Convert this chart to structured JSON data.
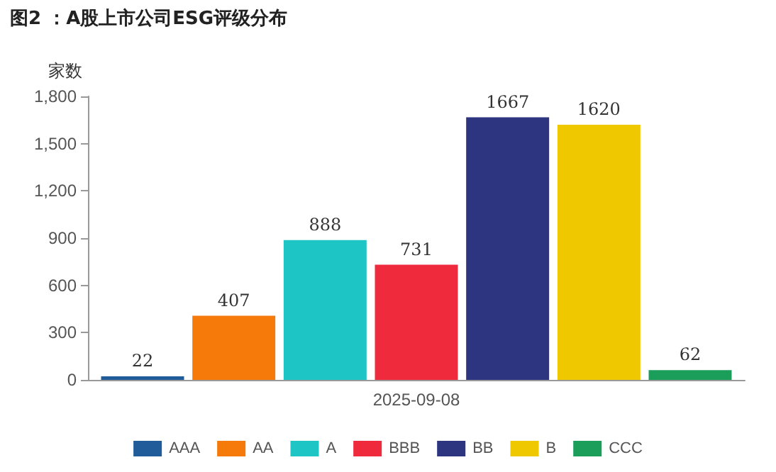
{
  "chart_data": {
    "type": "bar",
    "title": "图2 ：A股上市公司ESG评级分布",
    "ylabel": "家数",
    "categories": [
      "2025-09-08"
    ],
    "series": [
      {
        "name": "AAA",
        "color": "#1f5c99",
        "values": [
          22
        ]
      },
      {
        "name": "AA",
        "color": "#f57a0a",
        "values": [
          407
        ]
      },
      {
        "name": "A",
        "color": "#1ec5c5",
        "values": [
          888
        ]
      },
      {
        "name": "BBB",
        "color": "#ee2a3c",
        "values": [
          731
        ]
      },
      {
        "name": "BB",
        "color": "#2e3580",
        "values": [
          1667
        ]
      },
      {
        "name": "B",
        "color": "#f0c800",
        "values": [
          1620
        ]
      },
      {
        "name": "CCC",
        "color": "#1a9e5a",
        "values": [
          62
        ]
      }
    ],
    "ylim": [
      0,
      1800
    ],
    "yticks": [
      0,
      300,
      600,
      900,
      {
        "value": 1200,
        "label": "1,200"
      },
      {
        "value": 1500,
        "label": "1,500"
      },
      {
        "value": 1800,
        "label": "1,800"
      }
    ],
    "grid": false,
    "legend": "bottom",
    "data_labels": true
  }
}
